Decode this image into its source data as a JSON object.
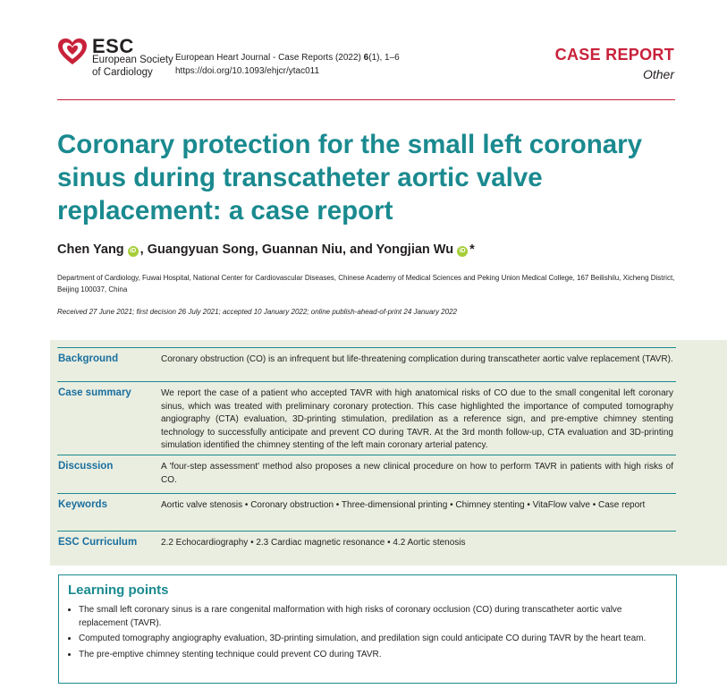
{
  "header": {
    "esc_word": "ESC",
    "esc_society": "European Society",
    "esc_cardiology": "of Cardiology",
    "journal_line_pre": "European Heart Journal - Case Reports (2022) ",
    "journal_volume": "6",
    "journal_line_post": "(1), 1–6",
    "doi": "https://doi.org/10.1093/ehjcr/ytac011",
    "case_report": "CASE REPORT",
    "case_type": "Other",
    "brand_color": "#c8223a"
  },
  "article": {
    "title": "Coronary protection for the small left coronary sinus during transcatheter aortic valve replacement: a case report",
    "authors": {
      "a1": "Chen Yang",
      "a2": ", Guangyuan Song, Guannan Niu, and Yongjian Wu",
      "star": "*",
      "orcid_icon": "orcid-icon"
    },
    "affiliation": "Department of Cardiology, Fuwai Hospital, National Center for Cardiovascular Diseases, Chinese Academy of Medical Sciences and Peking Union Medical College, 167 Beilishilu, Xicheng District, Beijing 100037, China",
    "dates": "Received 27 June 2021; first decision 26 July 2021; accepted 10 January 2022; online publish-ahead-of-print 24 January 2022",
    "title_color": "#1a8a8f"
  },
  "abstract": {
    "background_label": "Background",
    "background_text": "Coronary obstruction (CO) is an infrequent but life-threatening complication during transcatheter aortic valve replacement (TAVR).",
    "case_label": "Case summary",
    "case_text": "We report the case of a patient who accepted TAVR with high anatomical risks of CO due to the small congenital left coronary sinus, which was treated with preliminary coronary protection. This case highlighted the importance of computed tomography angiography (CTA) evaluation, 3D-printing stimulation, predilation as a reference sign, and pre-emptive chimney stenting technology to successfully anticipate and prevent CO during TAVR. At the 3rd month follow-up, CTA evaluation and 3D-printing simulation identified the chimney stenting of the left main coronary arterial patency.",
    "discussion_label": "Discussion",
    "discussion_text": "A 'four-step assessment' method also proposes a new clinical procedure on how to perform TAVR in patients with high risks of CO.",
    "keywords_label": "Keywords",
    "keywords_text": "Aortic valve stenosis • Coronary obstruction • Three-dimensional printing • Chimney stenting • VitaFlow valve • Case report",
    "curriculum_label": "ESC Curriculum",
    "curriculum_text": "2.2 Echocardiography • 2.3 Cardiac magnetic resonance • 4.2 Aortic stenosis",
    "panel_color": "#eaeee0"
  },
  "learning_points": {
    "title": "Learning points",
    "items": [
      "The small left coronary sinus is a rare congenital malformation with high risks of coronary occlusion (CO) during transcatheter aortic valve replacement (TAVR).",
      "Computed tomography angiography evaluation, 3D-printing simulation, and predilation sign could anticipate CO during TAVR by the heart team.",
      "The pre-emptive chimney stenting technique could prevent CO during TAVR."
    ]
  }
}
